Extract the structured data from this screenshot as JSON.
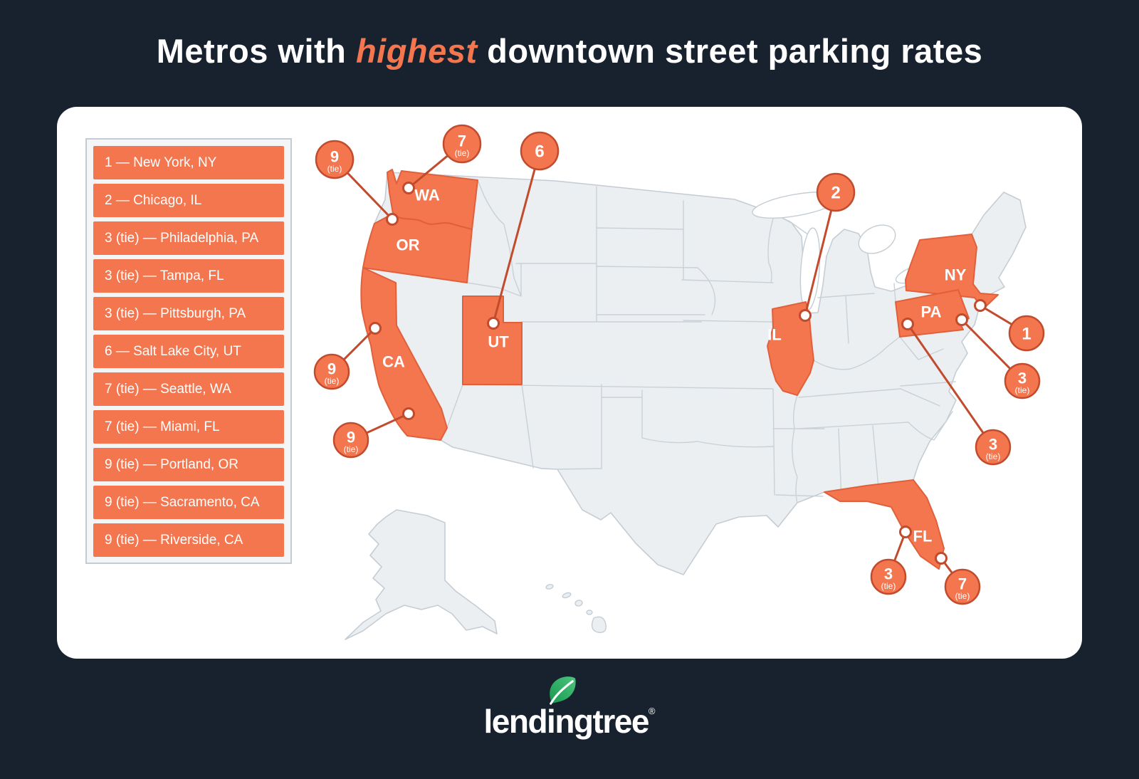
{
  "title": {
    "part1": "Metros with ",
    "highlight": "highest",
    "part2": " downtown street parking rates"
  },
  "ranking_list": [
    {
      "rank_label": "1",
      "city": "New York, NY"
    },
    {
      "rank_label": "2",
      "city": "Chicago, IL"
    },
    {
      "rank_label": "3 (tie)",
      "city": "Philadelphia, PA"
    },
    {
      "rank_label": "3 (tie)",
      "city": "Tampa, FL"
    },
    {
      "rank_label": "3 (tie)",
      "city": "Pittsburgh, PA"
    },
    {
      "rank_label": "6",
      "city": "Salt Lake City, UT"
    },
    {
      "rank_label": "7 (tie)",
      "city": "Seattle, WA"
    },
    {
      "rank_label": "7 (tie)",
      "city": "Miami, FL"
    },
    {
      "rank_label": "9 (tie)",
      "city": "Portland, OR"
    },
    {
      "rank_label": "9 (tie)",
      "city": "Sacramento, CA"
    },
    {
      "rank_label": "9 (tie)",
      "city": "Riverside, CA"
    }
  ],
  "map": {
    "state_labels": [
      "WA",
      "OR",
      "CA",
      "UT",
      "IL",
      "NY",
      "PA",
      "FL"
    ],
    "callouts": [
      {
        "id": "seattle",
        "rank": "7",
        "tie": "(tie)"
      },
      {
        "id": "portland",
        "rank": "9",
        "tie": "(tie)"
      },
      {
        "id": "salt-lake-city",
        "rank": "6",
        "tie": ""
      },
      {
        "id": "chicago",
        "rank": "2",
        "tie": ""
      },
      {
        "id": "new-york",
        "rank": "1",
        "tie": ""
      },
      {
        "id": "philadelphia",
        "rank": "3",
        "tie": "(tie)"
      },
      {
        "id": "pittsburgh",
        "rank": "3",
        "tie": "(tie)"
      },
      {
        "id": "sacramento",
        "rank": "9",
        "tie": "(tie)"
      },
      {
        "id": "riverside",
        "rank": "9",
        "tie": "(tie)"
      },
      {
        "id": "tampa",
        "rank": "3",
        "tie": "(tie)"
      },
      {
        "id": "miami",
        "rank": "7",
        "tie": "(tie)"
      }
    ]
  },
  "logo": {
    "text": "lendingtree",
    "registered": "®"
  },
  "colors": {
    "background": "#18222F",
    "accent": "#F4764F",
    "accent_dark": "#C14B2C",
    "state_gray": "#ECEFF1",
    "state_gray_border": "#C5CDD4",
    "leaf_green_dark": "#169A4E",
    "leaf_green_light": "#4EC47F"
  }
}
